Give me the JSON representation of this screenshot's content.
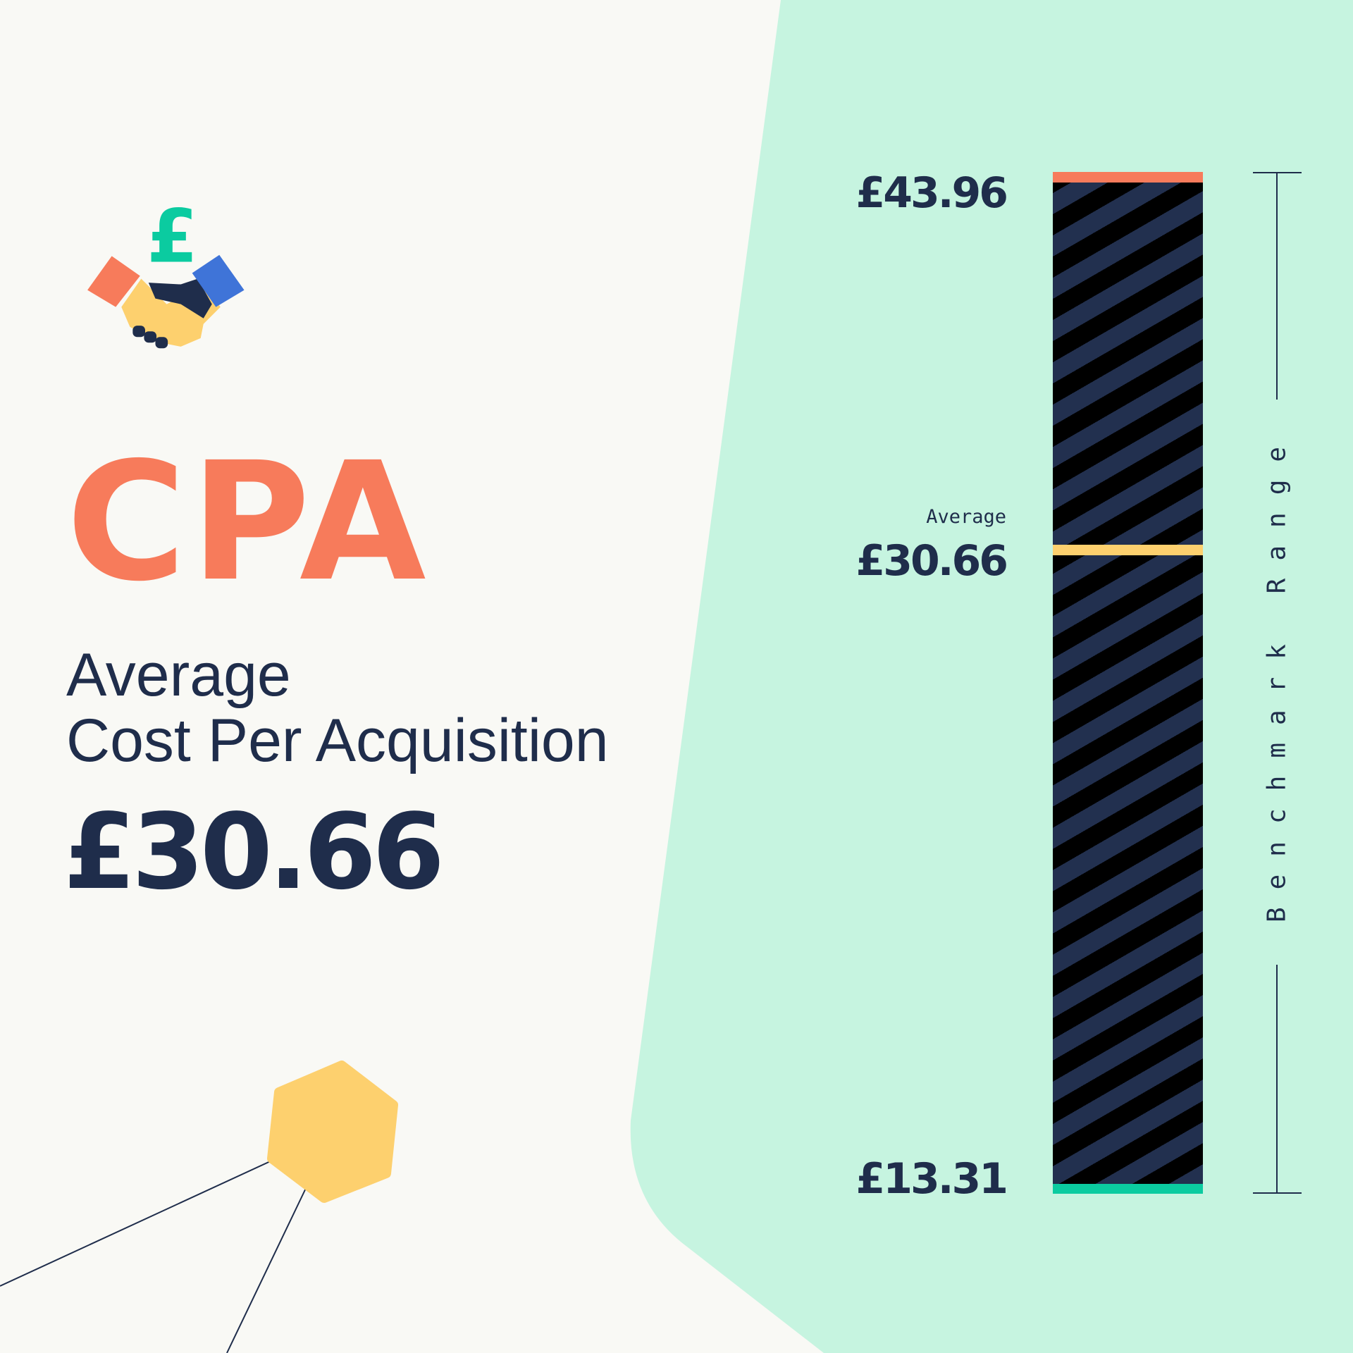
{
  "title": "CPA",
  "subtitle_line1": "Average",
  "subtitle_line2": "Cost Per Acquisition",
  "headline_value": "£30.66",
  "colors": {
    "background": "#F9F9F5",
    "panel": "#C6F4E0",
    "accent": "#F77B5B",
    "navy": "#1F2D4B",
    "yellow": "#FDD06E",
    "teal": "#0BCBA0",
    "blue": "#3F74D8"
  },
  "icon": "handshake-pound-icon",
  "chart_data": {
    "type": "range",
    "max": {
      "label": "£43.96",
      "value": 43.96,
      "color": "#F77B5B"
    },
    "average": {
      "caption": "Average",
      "label": "£30.66",
      "value": 30.66,
      "color": "#FDD06E"
    },
    "min": {
      "label": "£13.31",
      "value": 13.31,
      "color": "#0BCBA0"
    },
    "bracket_label": "Benchmark Range"
  }
}
